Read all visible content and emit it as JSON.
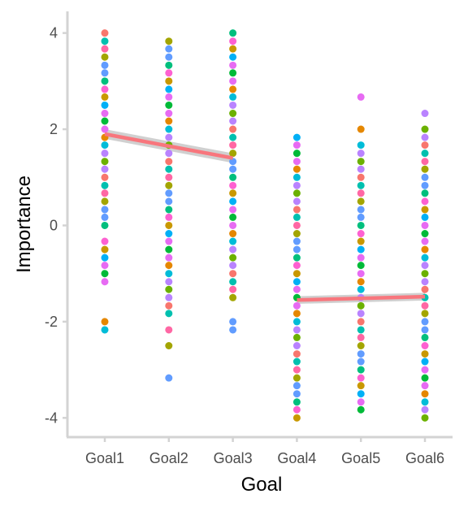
{
  "chart_data": {
    "type": "scatter",
    "xlabel": "Goal",
    "ylabel": "Importance",
    "categories": [
      "Goal1",
      "Goal2",
      "Goal3",
      "Goal4",
      "Goal5",
      "Goal6"
    ],
    "ylim": [
      -4.4,
      4.45
    ],
    "yticks": [
      -4,
      -2,
      0,
      2,
      4
    ],
    "grid": false,
    "legend": "none",
    "colors": {
      "axis": "#d3d3d3",
      "tick_text": "#4d4d4d",
      "trend_line": "#f8767d",
      "trend_band": "#c8c8c8",
      "palette": [
        "#f8766d",
        "#e58700",
        "#c99800",
        "#a3a500",
        "#6bb100",
        "#00ba38",
        "#00bf7d",
        "#00c0af",
        "#00bcd8",
        "#00b0f6",
        "#619cff",
        "#b983ff",
        "#e76bf3",
        "#fd61d1",
        "#ff67a4",
        "#b983ff",
        "#e76bf3",
        "#619cff"
      ]
    },
    "points": [
      {
        "goal": "Goal1",
        "values": [
          4.0,
          3.83,
          3.67,
          3.5,
          3.33,
          3.17,
          3.0,
          2.83,
          2.67,
          2.5,
          2.33,
          2.17,
          2.0,
          1.83,
          1.67,
          1.5,
          1.33,
          1.17,
          1.0,
          0.83,
          0.67,
          0.5,
          0.33,
          0.17,
          0.0,
          -0.33,
          -0.5,
          -0.67,
          -0.83,
          -1.0,
          -1.17,
          -2.0,
          -2.17
        ]
      },
      {
        "goal": "Goal2",
        "values": [
          3.83,
          3.67,
          3.5,
          3.33,
          3.17,
          3.0,
          2.83,
          2.67,
          2.5,
          2.33,
          2.17,
          2.0,
          1.83,
          1.67,
          1.5,
          1.33,
          1.17,
          1.0,
          0.83,
          0.67,
          0.5,
          0.33,
          0.17,
          0.0,
          -0.17,
          -0.33,
          -0.5,
          -0.67,
          -0.83,
          -1.0,
          -1.17,
          -1.33,
          -1.5,
          -1.67,
          -1.83,
          -2.17,
          -2.5,
          -3.17
        ]
      },
      {
        "goal": "Goal3",
        "values": [
          4.0,
          3.83,
          3.67,
          3.5,
          3.33,
          3.17,
          3.0,
          2.83,
          2.67,
          2.5,
          2.33,
          2.17,
          2.0,
          1.83,
          1.67,
          1.5,
          1.33,
          1.17,
          1.0,
          0.83,
          0.67,
          0.5,
          0.33,
          0.17,
          0.0,
          -0.17,
          -0.33,
          -0.5,
          -0.67,
          -0.83,
          -1.0,
          -1.17,
          -1.33,
          -1.5,
          -2.0,
          -2.17
        ]
      },
      {
        "goal": "Goal4",
        "values": [
          1.83,
          1.67,
          1.5,
          1.33,
          1.17,
          1.0,
          0.83,
          0.67,
          0.5,
          0.33,
          0.17,
          0.0,
          -0.17,
          -0.33,
          -0.5,
          -0.67,
          -0.83,
          -1.0,
          -1.17,
          -1.33,
          -1.5,
          -1.67,
          -1.83,
          -2.0,
          -2.17,
          -2.33,
          -2.5,
          -2.67,
          -2.83,
          -3.0,
          -3.17,
          -3.33,
          -3.5,
          -3.67,
          -3.83,
          -4.0
        ]
      },
      {
        "goal": "Goal5",
        "values": [
          2.67,
          2.0,
          1.67,
          1.5,
          1.33,
          1.17,
          1.0,
          0.83,
          0.67,
          0.5,
          0.33,
          0.17,
          0.0,
          -0.17,
          -0.33,
          -0.5,
          -0.67,
          -0.83,
          -1.0,
          -1.17,
          -1.33,
          -1.5,
          -1.67,
          -1.83,
          -2.0,
          -2.17,
          -2.33,
          -2.5,
          -2.67,
          -2.83,
          -3.0,
          -3.17,
          -3.33,
          -3.5,
          -3.67,
          -3.83
        ]
      },
      {
        "goal": "Goal6",
        "values": [
          2.33,
          2.0,
          1.83,
          1.67,
          1.5,
          1.33,
          1.17,
          1.0,
          0.83,
          0.67,
          0.5,
          0.33,
          0.17,
          0.0,
          -0.17,
          -0.33,
          -0.5,
          -0.67,
          -0.83,
          -1.0,
          -1.17,
          -1.33,
          -1.5,
          -1.67,
          -1.83,
          -2.0,
          -2.17,
          -2.33,
          -2.5,
          -2.67,
          -2.83,
          -3.0,
          -3.17,
          -3.33,
          -3.5,
          -3.67,
          -3.83,
          -4.0
        ]
      }
    ],
    "trend_lines": [
      {
        "from": "Goal1",
        "to": "Goal3",
        "y_start": 1.9,
        "y_end": 1.4,
        "se": 0.1
      },
      {
        "from": "Goal4",
        "to": "Goal6",
        "y_start": -1.55,
        "y_end": -1.48,
        "se": 0.08
      }
    ]
  }
}
